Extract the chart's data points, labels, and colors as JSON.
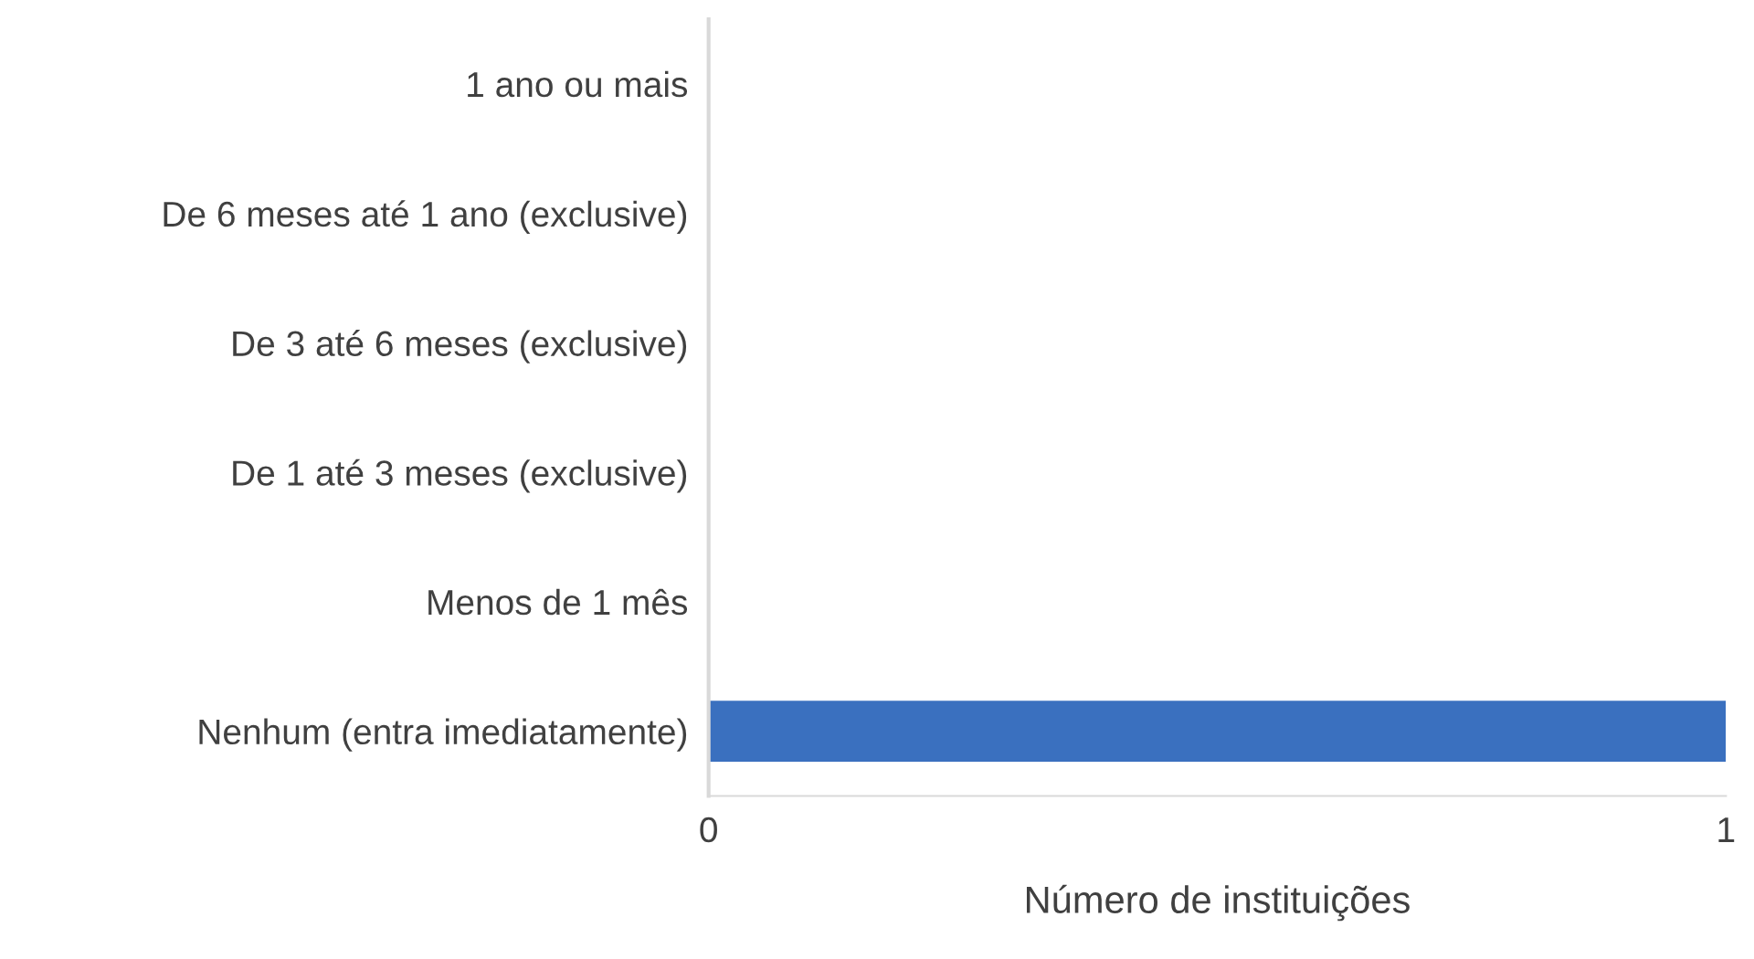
{
  "chart_data": {
    "type": "bar",
    "orientation": "horizontal",
    "xlabel": "Número de instituições",
    "categories": [
      "1 ano ou mais",
      "De 6 meses até 1 ano (exclusive)",
      "De 3 até 6 meses (exclusive)",
      "De 1 até 3 meses (exclusive)",
      "Menos de 1 mês",
      "Nenhum (entra imediatamente)"
    ],
    "values": [
      0,
      0,
      0,
      0,
      0,
      1
    ],
    "color": "#3a70bf",
    "xlim": [
      0,
      1
    ],
    "xticks": [
      0,
      1
    ],
    "grid": false,
    "legend": false
  }
}
